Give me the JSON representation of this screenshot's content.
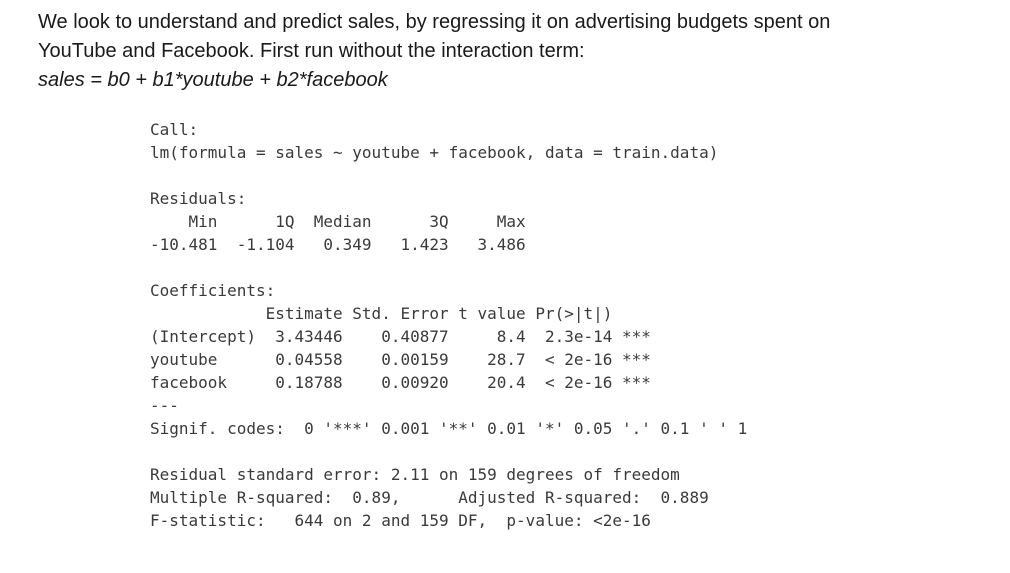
{
  "intro": {
    "line1": "We look to understand and predict sales, by regressing it on advertising budgets spent on",
    "line2": "YouTube and Facebook. First run without the interaction term:",
    "formula": "sales = b0 + b1*youtube + b2*facebook"
  },
  "output": {
    "call_header": "Call:",
    "call": "lm(formula = sales ~ youtube + facebook, data = train.data)",
    "residuals_header": "Residuals:",
    "residuals_labels": "    Min      1Q  Median      3Q     Max ",
    "residuals_values": "-10.481  -1.104   0.349   1.423   3.486 ",
    "coef_header": "Coefficients:",
    "coef_columns": "            Estimate Std. Error t value Pr(>|t|)    ",
    "coef_intercept": "(Intercept)  3.43446    0.40877     8.4  2.3e-14 ***",
    "coef_youtube": "youtube      0.04558    0.00159    28.7  < 2e-16 ***",
    "coef_facebook": "facebook     0.18788    0.00920    20.4  < 2e-16 ***",
    "separator": "---",
    "signif": "Signif. codes:  0 '***' 0.001 '**' 0.01 '*' 0.05 '.' 0.1 ' ' 1",
    "rse": "Residual standard error: 2.11 on 159 degrees of freedom",
    "r_squared": "Multiple R-squared:  0.89,\tAdjusted R-squared:  0.889 ",
    "f_statistic": "F-statistic:   644 on 2 and 159 DF,  p-value: <2e-16"
  }
}
